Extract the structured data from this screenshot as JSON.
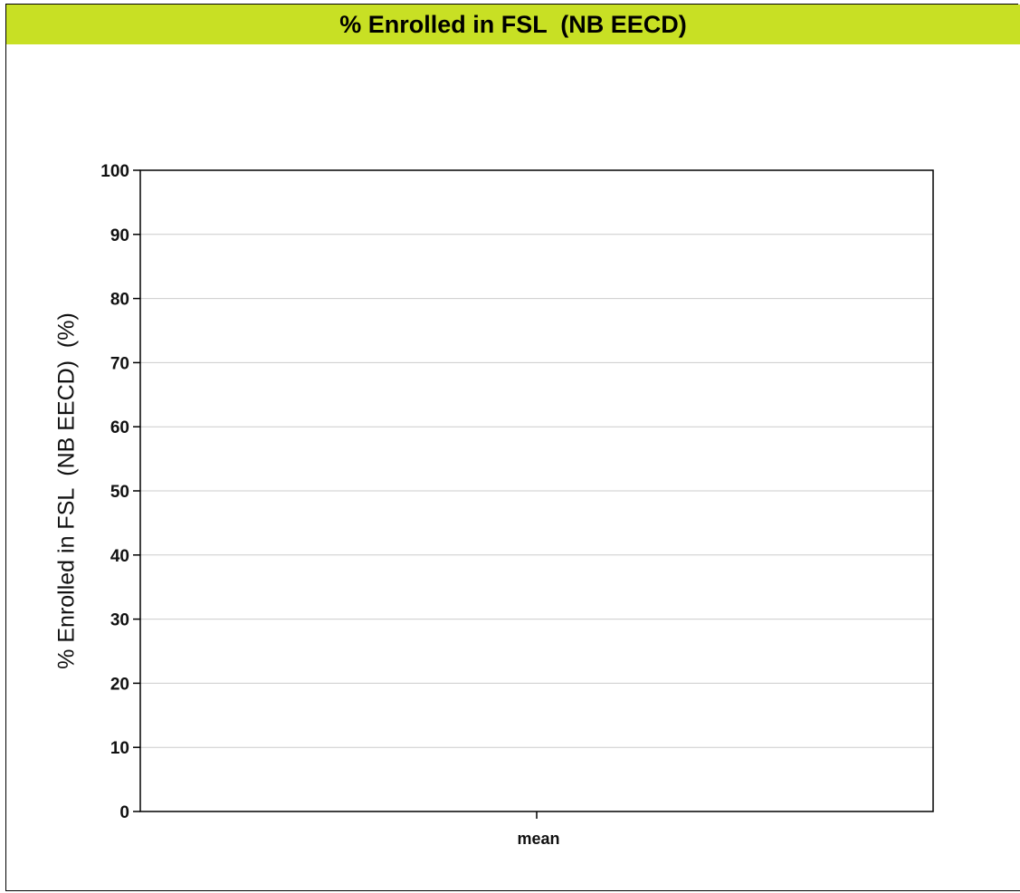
{
  "colors": {
    "title_bar": "#c8e024",
    "gridline": "#cccccc",
    "axis": "#000000",
    "text": "#111111"
  },
  "header": {
    "title": "% Enrolled in FSL  (NB EECD)"
  },
  "chart_data": {
    "type": "bar",
    "title": "% Enrolled in FSL  (NB EECD)",
    "xlabel": "",
    "ylabel": "% Enrolled in FSL  (NB EECD)  (%)",
    "categories": [
      "mean"
    ],
    "series": [],
    "ylim": [
      0,
      100
    ],
    "yticks": [
      0,
      10,
      20,
      30,
      40,
      50,
      60,
      70,
      80,
      90,
      100
    ],
    "grid": true,
    "legend": "none"
  }
}
